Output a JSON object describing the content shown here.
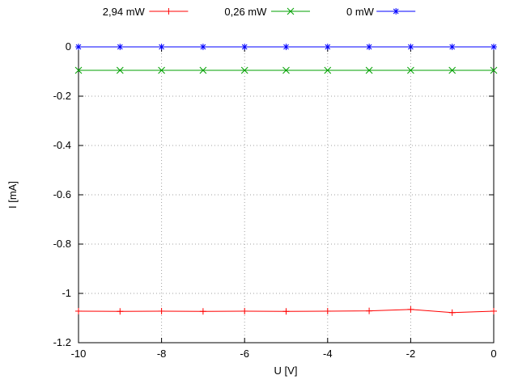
{
  "chart_data": {
    "type": "line",
    "title": "",
    "xlabel": "U [V]",
    "ylabel": "I [mA]",
    "xlim": [
      -10,
      0
    ],
    "ylim": [
      -1.2,
      0
    ],
    "xticks": [
      -10,
      -8,
      -6,
      -4,
      -2,
      0
    ],
    "xtick_labels": [
      "-10",
      "-8",
      "-6",
      "-4",
      "-2",
      "0"
    ],
    "yticks": [
      0,
      -0.2,
      -0.4,
      -0.6,
      -0.8,
      -1,
      -1.2
    ],
    "ytick_labels": [
      "0",
      "-0.2",
      "-0.4",
      "-0.6",
      "-0.8",
      "-1",
      "-1.2"
    ],
    "grid": true,
    "grid_style": "dotted",
    "legend_position": "top-center-outside",
    "x": [
      -10,
      -9,
      -8,
      -7,
      -6,
      -5,
      -4,
      -3,
      -2,
      -1,
      0
    ],
    "series": [
      {
        "name": "2,94 mW",
        "color": "#ff0000",
        "marker": "plus",
        "values": [
          -1.072,
          -1.073,
          -1.072,
          -1.073,
          -1.072,
          -1.073,
          -1.072,
          -1.071,
          -1.065,
          -1.078,
          -1.072
        ]
      },
      {
        "name": "0,26 mW",
        "color": "#00a000",
        "marker": "cross",
        "values": [
          -0.095,
          -0.095,
          -0.095,
          -0.095,
          -0.095,
          -0.095,
          -0.095,
          -0.095,
          -0.095,
          -0.095,
          -0.095
        ]
      },
      {
        "name": "0 mW",
        "color": "#0000ff",
        "marker": "asterisk",
        "values": [
          0,
          0,
          0,
          0,
          0,
          0,
          0,
          0,
          0,
          0,
          0
        ]
      }
    ],
    "colors": {
      "axis": "#000000",
      "grid": "#a0a0a0",
      "background": "#ffffff"
    }
  }
}
